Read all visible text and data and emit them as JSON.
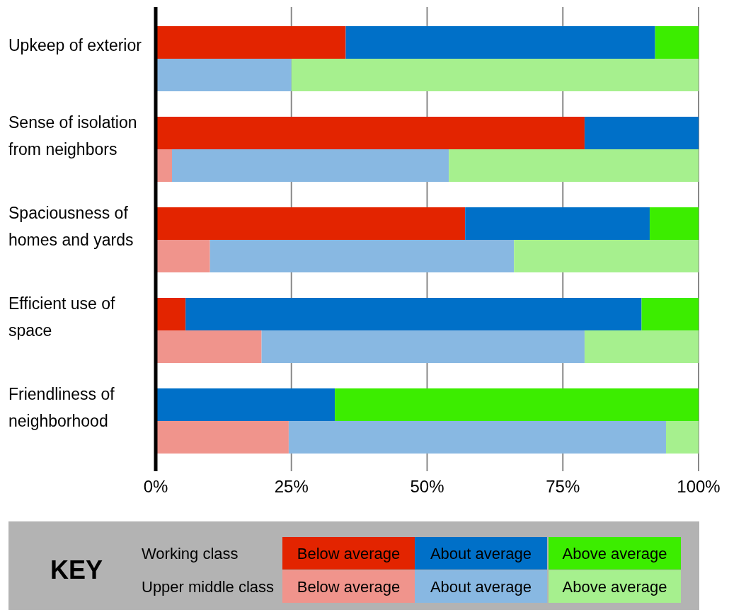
{
  "chart_data": {
    "type": "bar",
    "orientation": "horizontal",
    "stacked": true,
    "categories": [
      "Upkeep of exterior",
      null,
      "Sense of isolation from neighbors",
      null,
      "Spaciousness of homes and yards",
      null,
      "Efficient use of space",
      null,
      "Friendliness of neighborhood",
      null
    ],
    "series": [
      {
        "name": "Below average",
        "color": "#e32400",
        "values": [
          35,
          null,
          79,
          null,
          57,
          null,
          5.5,
          null,
          0,
          null
        ]
      },
      {
        "name": "About average",
        "color": "#0070c8",
        "values": [
          57,
          null,
          21,
          null,
          34,
          null,
          84,
          null,
          33,
          null
        ]
      },
      {
        "name": "Above average",
        "color": "#3ced00",
        "values": [
          8,
          null,
          0,
          null,
          9,
          null,
          10.5,
          null,
          67,
          null
        ]
      },
      {
        "name": "Below average",
        "color": "#f0948c",
        "values": [
          null,
          0,
          null,
          3,
          null,
          10,
          null,
          19.5,
          null,
          24.5
        ]
      },
      {
        "name": "About average",
        "color": "#88b8e2",
        "values": [
          null,
          25,
          null,
          51,
          null,
          56,
          null,
          59.5,
          null,
          69.5
        ]
      },
      {
        "name": "Above average",
        "color": "#a6f08e",
        "values": [
          null,
          75,
          null,
          46,
          null,
          34,
          null,
          21,
          null,
          6
        ]
      }
    ],
    "xlim": [
      0,
      100
    ],
    "xticks": [
      {
        "value": 0,
        "label": "0%"
      },
      {
        "value": 25,
        "label": "25%"
      },
      {
        "value": 50,
        "label": "50%"
      },
      {
        "value": 75,
        "label": "75%"
      },
      {
        "value": 100,
        "label": "100%"
      }
    ],
    "grid": "x",
    "legend": "bottom",
    "legend_title": "KEY",
    "annotations": [
      "Working class",
      "Upper middle class"
    ]
  }
}
